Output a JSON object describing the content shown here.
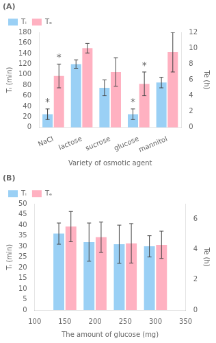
{
  "chart_data": [
    {
      "type": "bar",
      "title": "(A)",
      "categories": [
        "NaCl",
        "lactose",
        "sucrose",
        "glucose",
        "mannitol"
      ],
      "x_label": "Variety of osmotic agent",
      "y_label": "Tᵢ (min)",
      "y2_label": "Te (h)",
      "series": [
        {
          "name": "Tᵢ",
          "values": [
            25,
            120,
            75,
            25,
            85
          ],
          "errors": [
            10,
            8,
            15,
            10,
            10
          ]
        },
        {
          "name": "Tₑ",
          "axis": "y2",
          "values": [
            6.5,
            10.0,
            7.0,
            5.5,
            9.5
          ],
          "errors": [
            1.5,
            0.6,
            1.8,
            1.5,
            2.5
          ]
        }
      ],
      "ylim": [
        0,
        180
      ],
      "yticks": [
        0,
        20,
        40,
        60,
        80,
        100,
        120,
        140,
        160,
        180
      ],
      "y2lim": [
        0,
        12
      ],
      "y2ticks": [
        0,
        2,
        4,
        6,
        8,
        10,
        12
      ],
      "annotations": [
        {
          "text": "*",
          "series": "Tᵢ",
          "category": "NaCl"
        },
        {
          "text": "*",
          "series": "Tᵢ",
          "category": "glucose"
        },
        {
          "text": "*",
          "series": "Tₑ",
          "category": "NaCl"
        },
        {
          "text": "*",
          "series": "Tₑ",
          "category": "glucose"
        }
      ],
      "legend": "upper left",
      "grid": false
    },
    {
      "type": "bar",
      "title": "(B)",
      "x": [
        150,
        200,
        250,
        300
      ],
      "x_label": "The amount of glucose (mg)",
      "y_label": "Tᵢ (min)",
      "y2_label": "Te (h)",
      "series": [
        {
          "name": "Tᵢ",
          "values": [
            36,
            32,
            31,
            30
          ],
          "errors": [
            5,
            9,
            9,
            5
          ]
        },
        {
          "name": "Tₑ",
          "axis": "y2",
          "values": [
            5.5,
            4.8,
            4.4,
            4.3
          ],
          "errors": [
            1.0,
            1.0,
            1.3,
            0.9
          ]
        }
      ],
      "xlim": [
        100,
        350
      ],
      "xticks": [
        100,
        150,
        200,
        250,
        300,
        350
      ],
      "ylim": [
        0,
        50
      ],
      "yticks": [
        0,
        5,
        10,
        15,
        20,
        25,
        30,
        35,
        40,
        45,
        50
      ],
      "y2lim": [
        0,
        7
      ],
      "y2ticks": [
        0,
        2,
        4,
        6
      ],
      "legend": "upper left",
      "grid": false
    }
  ]
}
